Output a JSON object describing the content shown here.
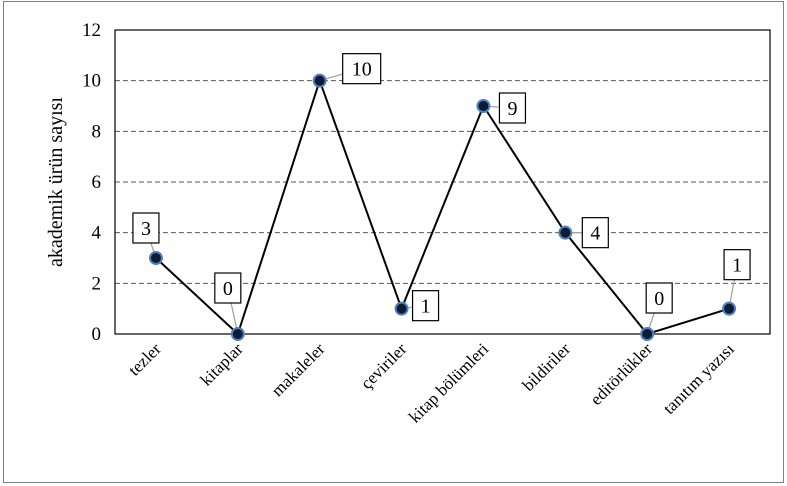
{
  "chart_data": {
    "type": "line",
    "categories": [
      "tezler",
      "kitaplar",
      "makaleler",
      "çeviriler",
      "kitap bölümleri",
      "bildiriler",
      "editörlükler",
      "tanıtım yazısı"
    ],
    "values": [
      3,
      0,
      10,
      1,
      9,
      4,
      0,
      1
    ],
    "data_labels": [
      "3",
      "0",
      "10",
      "1",
      "9",
      "4",
      "0",
      "1"
    ],
    "ylabel": "akademik ürün sayısı",
    "xlabel": "",
    "ylim": [
      0,
      12
    ],
    "yticks": [
      0,
      2,
      4,
      6,
      8,
      10,
      12
    ],
    "ytick_labels": [
      "0",
      "2",
      "4",
      "6",
      "8",
      "10",
      "12"
    ],
    "grid": "horizontal-dashed",
    "legend": "none",
    "colors": {
      "line": "#000000",
      "marker_fill": "#0d1b33",
      "marker_edge": "#4f81bd",
      "leader": "#a6a6a6",
      "grid": "#595959"
    }
  }
}
